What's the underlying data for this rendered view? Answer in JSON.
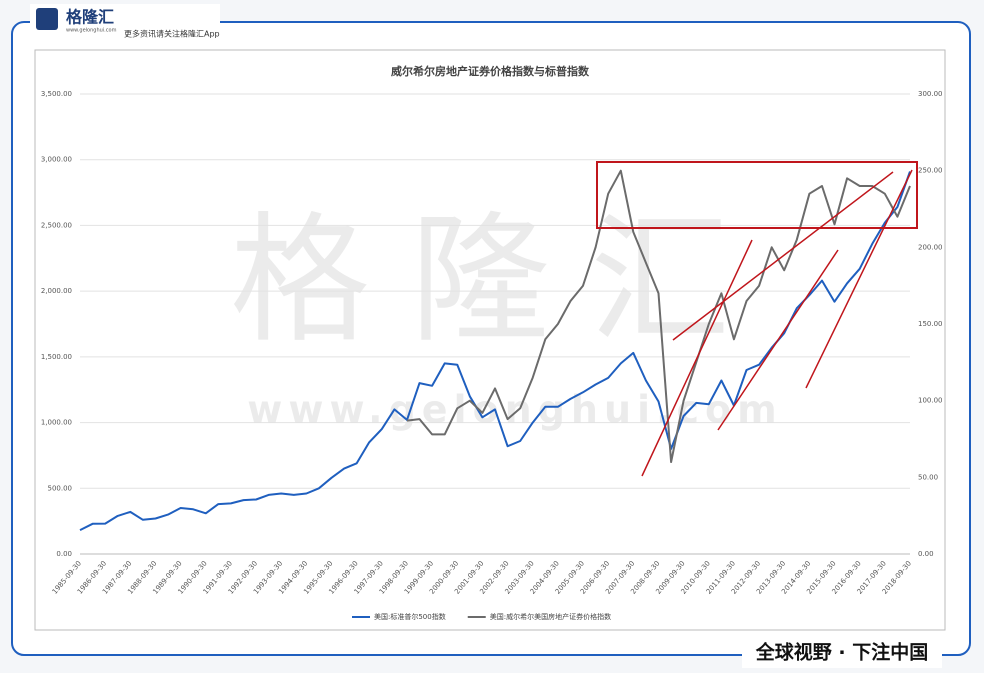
{
  "brand": {
    "name": "格隆汇",
    "site": "www.gelonghui.com",
    "tagline": "更多资讯请关注格隆汇App",
    "slogan": "全球视野 · 下注中国"
  },
  "chart_data": {
    "type": "line",
    "title": "威尔希尔房地产证券价格指数与标普指数",
    "watermark": {
      "name": "格隆汇",
      "site": "www.gelonghui.com"
    },
    "categories": [
      "1985-09-30",
      null,
      "1986-09-30",
      null,
      "1987-09-30",
      null,
      "1988-09-30",
      null,
      "1989-09-30",
      null,
      "1990-09-30",
      null,
      "1991-09-30",
      null,
      "1992-09-30",
      null,
      "1993-09-30",
      null,
      "1994-09-30",
      null,
      "1995-09-30",
      null,
      "1996-09-30",
      null,
      "1997-09-30",
      null,
      "1998-09-30",
      null,
      "1999-09-30",
      null,
      "2000-09-30",
      null,
      "2001-09-30",
      null,
      "2002-09-30",
      null,
      "2003-09-30",
      null,
      "2004-09-30",
      null,
      "2005-09-30",
      null,
      "2006-09-30",
      null,
      "2007-09-30",
      null,
      "2008-09-30",
      null,
      "2009-09-30",
      null,
      "2010-09-30",
      null,
      "2011-09-30",
      null,
      "2012-09-30",
      null,
      "2013-09-30",
      null,
      "2014-09-30",
      null,
      "2015-09-30",
      null,
      "2016-09-30",
      null,
      "2017-09-30",
      null,
      "2018-09-30"
    ],
    "series": [
      {
        "name": "美国:标准普尔500指数",
        "color": "#1f5fbf",
        "values": [
          182,
          230,
          231,
          290,
          320,
          260,
          270,
          300,
          350,
          340,
          310,
          380,
          385,
          410,
          415,
          450,
          460,
          450,
          460,
          500,
          580,
          650,
          690,
          850,
          950,
          1100,
          1020,
          1300,
          1280,
          1450,
          1440,
          1200,
          1040,
          1100,
          820,
          860,
          1000,
          1120,
          1120,
          1180,
          1230,
          1290,
          1340,
          1450,
          1530,
          1320,
          1160,
          800,
          1050,
          1150,
          1140,
          1320,
          1130,
          1400,
          1440,
          1570,
          1680,
          1870,
          1970,
          2080,
          1920,
          2060,
          2170,
          2360,
          2520,
          2640,
          2910
        ]
      },
      {
        "name": "美国:威尔希尔美国房地产证券价格指数",
        "color": "#6b6b6b",
        "axis": "y2",
        "values": [
          null,
          null,
          null,
          null,
          null,
          null,
          null,
          null,
          null,
          null,
          null,
          null,
          null,
          null,
          null,
          null,
          null,
          null,
          null,
          null,
          null,
          null,
          null,
          null,
          null,
          null,
          87,
          88,
          78,
          78,
          95,
          100,
          92,
          108,
          88,
          95,
          115,
          140,
          150,
          165,
          175,
          200,
          235,
          250,
          210,
          190,
          170,
          60,
          100,
          125,
          150,
          170,
          140,
          165,
          175,
          200,
          185,
          205,
          235,
          240,
          215,
          245,
          240,
          240,
          235,
          220,
          240
        ]
      }
    ],
    "ylim": [
      0,
      3500
    ],
    "yticks": [
      {
        "value": 0,
        "label": "0.00"
      },
      {
        "value": 500,
        "label": "500.00"
      },
      {
        "value": 1000,
        "label": "1,000.00"
      },
      {
        "value": 1500,
        "label": "1,500.00"
      },
      {
        "value": 2000,
        "label": "2,000.00"
      },
      {
        "value": 2500,
        "label": "2,500.00"
      },
      {
        "value": 3000,
        "label": "3,000.00"
      },
      {
        "value": 3500,
        "label": "3,500.00"
      }
    ],
    "y2lim": [
      0,
      300
    ],
    "y2ticks": [
      {
        "value": 0,
        "label": "0.00"
      },
      {
        "value": 50,
        "label": "50.00"
      },
      {
        "value": 100,
        "label": "100.00"
      },
      {
        "value": 150,
        "label": "150.00"
      },
      {
        "value": 200,
        "label": "200.00"
      },
      {
        "value": 250,
        "label": "250.00"
      },
      {
        "value": 300,
        "label": "300.00"
      }
    ],
    "grid": true,
    "legend": "bottom"
  }
}
